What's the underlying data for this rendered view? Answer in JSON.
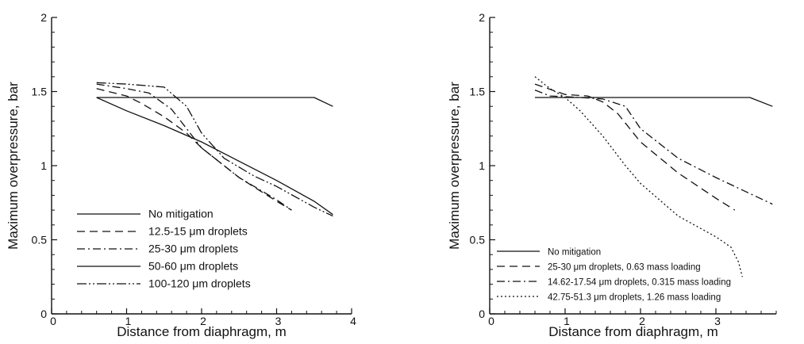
{
  "chart_data": [
    {
      "type": "line",
      "xlabel": "Distance from diaphragm, m",
      "ylabel": "Maximum overpressure, bar",
      "xlim": [
        0,
        4
      ],
      "ylim": [
        0,
        2
      ],
      "xticks": [
        "0",
        "1",
        "2",
        "3",
        "4"
      ],
      "yticks": [
        "0",
        "0.5",
        "1",
        "1.5",
        "2"
      ],
      "legend_position": "lower-left",
      "series": [
        {
          "name": "No mitigation",
          "dash": "solid",
          "x": [
            0.6,
            1.0,
            2.0,
            3.0,
            3.5,
            3.75
          ],
          "y": [
            1.46,
            1.46,
            1.46,
            1.46,
            1.46,
            1.4
          ]
        },
        {
          "name": "12.5-15 μm droplets",
          "dash": "dash",
          "x": [
            0.6,
            1.0,
            1.2,
            1.5,
            1.8,
            2.0,
            2.5,
            3.0,
            3.2
          ],
          "y": [
            1.52,
            1.47,
            1.42,
            1.33,
            1.22,
            1.12,
            0.92,
            0.76,
            0.7
          ]
        },
        {
          "name": "25-30 μm droplets",
          "dash": "dashdot",
          "x": [
            0.6,
            1.0,
            1.3,
            1.6,
            1.8,
            2.0,
            2.5,
            3.0,
            3.2
          ],
          "y": [
            1.55,
            1.52,
            1.49,
            1.38,
            1.25,
            1.12,
            0.92,
            0.77,
            0.7
          ]
        },
        {
          "name": "50-60 μm droplets",
          "dash": "solid",
          "x": [
            0.6,
            1.0,
            1.5,
            2.0,
            2.5,
            3.0,
            3.5,
            3.75
          ],
          "y": [
            1.46,
            1.37,
            1.27,
            1.16,
            1.03,
            0.9,
            0.76,
            0.67
          ]
        },
        {
          "name": "100-120 μm droplets",
          "dash": "dashdotdot",
          "x": [
            0.6,
            1.0,
            1.5,
            1.8,
            2.0,
            2.3,
            2.7,
            3.0,
            3.5,
            3.75
          ],
          "y": [
            1.56,
            1.55,
            1.53,
            1.4,
            1.22,
            1.05,
            0.93,
            0.86,
            0.72,
            0.66
          ]
        }
      ]
    },
    {
      "type": "line",
      "xlabel": "Distance from diaphragm, m",
      "ylabel": "Maximum overpressure, bar",
      "xlim": [
        0,
        3.8
      ],
      "ylim": [
        0,
        2
      ],
      "xticks": [
        "0",
        "1",
        "2",
        "3"
      ],
      "yticks": [
        "0",
        "0.5",
        "1",
        "1.5",
        "2"
      ],
      "legend_position": "lower-left",
      "series": [
        {
          "name": "No mitigation",
          "dash": "solid",
          "x": [
            0.6,
            1.0,
            2.0,
            3.0,
            3.45,
            3.75
          ],
          "y": [
            1.46,
            1.46,
            1.46,
            1.46,
            1.46,
            1.4
          ]
        },
        {
          "name": "25-30 μm droplets, 0.63 mass loading",
          "dash": "dash",
          "x": [
            0.6,
            1.0,
            1.3,
            1.5,
            1.7,
            2.0,
            2.5,
            3.0,
            3.25
          ],
          "y": [
            1.55,
            1.48,
            1.47,
            1.43,
            1.35,
            1.16,
            0.95,
            0.78,
            0.7
          ]
        },
        {
          "name": "14.62-17.54 μm droplets, 0.315 mass loading",
          "dash": "dashdot",
          "x": [
            0.6,
            0.8,
            1.2,
            1.5,
            1.8,
            2.0,
            2.5,
            3.0,
            3.5,
            3.75
          ],
          "y": [
            1.51,
            1.47,
            1.46,
            1.45,
            1.4,
            1.25,
            1.05,
            0.92,
            0.8,
            0.74
          ]
        },
        {
          "name": "42.75-51.3 μm droplets, 1.26 mass loading",
          "dash": "dotted",
          "x": [
            0.6,
            0.8,
            1.0,
            1.2,
            1.5,
            1.8,
            2.0,
            2.5,
            3.0,
            3.2,
            3.3,
            3.35
          ],
          "y": [
            1.6,
            1.52,
            1.46,
            1.37,
            1.2,
            1.0,
            0.88,
            0.66,
            0.52,
            0.45,
            0.35,
            0.25
          ]
        }
      ]
    }
  ]
}
